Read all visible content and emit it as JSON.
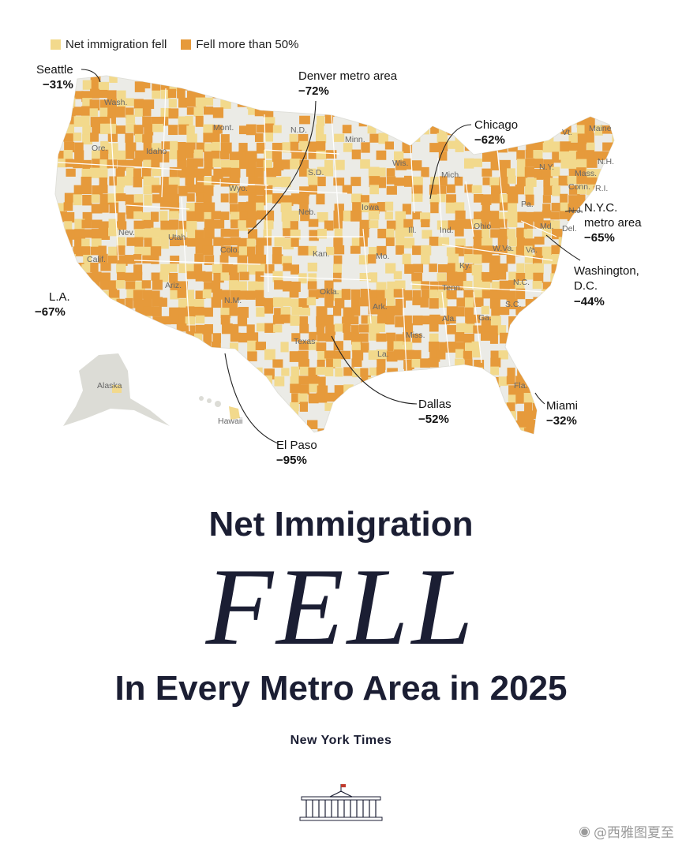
{
  "legend": {
    "items": [
      {
        "label": "Net immigration fell",
        "color": "#f2d98c"
      },
      {
        "label": "Fell more than 50%",
        "color": "#e69a3b"
      }
    ]
  },
  "map": {
    "callouts": [
      {
        "id": "seattle",
        "name": "Seattle",
        "value": "−31%"
      },
      {
        "id": "denver",
        "name": "Denver metro area",
        "value": "−72%"
      },
      {
        "id": "chicago",
        "name": "Chicago",
        "value": "−62%"
      },
      {
        "id": "nyc",
        "name": "N.Y.C. metro area",
        "name_lines": [
          "N.Y.C.",
          "metro area"
        ],
        "value": "−65%"
      },
      {
        "id": "dc",
        "name": "Washington, D.C.",
        "name_lines": [
          "Washington,",
          "D.C."
        ],
        "value": "−44%"
      },
      {
        "id": "la",
        "name": "L.A.",
        "value": "−67%"
      },
      {
        "id": "dallas",
        "name": "Dallas",
        "value": "−52%"
      },
      {
        "id": "miami",
        "name": "Miami",
        "value": "−32%"
      },
      {
        "id": "elpaso",
        "name": "El Paso",
        "value": "−95%"
      }
    ],
    "state_labels": [
      "Wash.",
      "Ore.",
      "Idaho",
      "Mont.",
      "Wyo.",
      "N.D.",
      "S.D.",
      "Minn.",
      "Wis.",
      "Mich.",
      "Vt.",
      "Maine",
      "N.H.",
      "Mass.",
      "N.Y.",
      "Conn.",
      "R.I.",
      "Nev.",
      "Utah",
      "Calif.",
      "Colo.",
      "Neb.",
      "Iowa",
      "Ill.",
      "Ind.",
      "Ohio",
      "Pa.",
      "N.J.",
      "Md.",
      "Del.",
      "Kan.",
      "Mo.",
      "Ky.",
      "W.Va.",
      "Va.",
      "Ariz.",
      "N.M.",
      "Okla.",
      "Tenn.",
      "N.C.",
      "Ark.",
      "S.C.",
      "Texas",
      "Miss.",
      "Ala.",
      "Ga.",
      "La.",
      "Fla.",
      "Alaska",
      "Hawaii"
    ],
    "colors": {
      "land": "#ebebe6",
      "light": "#f2d98c",
      "dark": "#e69a3b",
      "outline": "#ffffff"
    }
  },
  "headline": {
    "line1": "Net Immigration",
    "line2": "FELL",
    "line3": "In Every Metro Area in 2025"
  },
  "source": "New York Times",
  "watermark": "@西雅图夏至"
}
